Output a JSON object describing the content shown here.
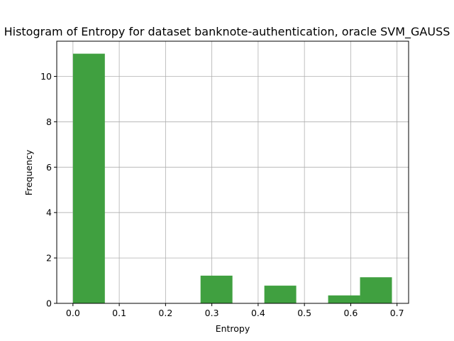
{
  "chart_data": {
    "type": "bar",
    "title": "Histogram of Entropy for dataset banknote-authentication, oracle SVM_GAUSS",
    "xlabel": "Entropy",
    "ylabel": "Frequency",
    "xlim": [
      -0.035,
      0.725
    ],
    "ylim": [
      0,
      11.55
    ],
    "grid": true,
    "bar_color": "#40a040",
    "x_ticks": [
      {
        "value": 0.0,
        "label": "0.0"
      },
      {
        "value": 0.1,
        "label": "0.1"
      },
      {
        "value": 0.2,
        "label": "0.2"
      },
      {
        "value": 0.3,
        "label": "0.3"
      },
      {
        "value": 0.4,
        "label": "0.4"
      },
      {
        "value": 0.5,
        "label": "0.5"
      },
      {
        "value": 0.6,
        "label": "0.6"
      },
      {
        "value": 0.7,
        "label": "0.7"
      }
    ],
    "y_ticks": [
      {
        "value": 0,
        "label": "0"
      },
      {
        "value": 2,
        "label": "2"
      },
      {
        "value": 4,
        "label": "4"
      },
      {
        "value": 6,
        "label": "6"
      },
      {
        "value": 8,
        "label": "8"
      },
      {
        "value": 10,
        "label": "10"
      }
    ],
    "bins": [
      {
        "start": 0.0,
        "end": 0.0689,
        "value": 11.0
      },
      {
        "start": 0.2756,
        "end": 0.3445,
        "value": 1.22
      },
      {
        "start": 0.4134,
        "end": 0.4823,
        "value": 0.78
      },
      {
        "start": 0.5512,
        "end": 0.6201,
        "value": 0.35
      },
      {
        "start": 0.6201,
        "end": 0.689,
        "value": 1.15
      }
    ]
  }
}
